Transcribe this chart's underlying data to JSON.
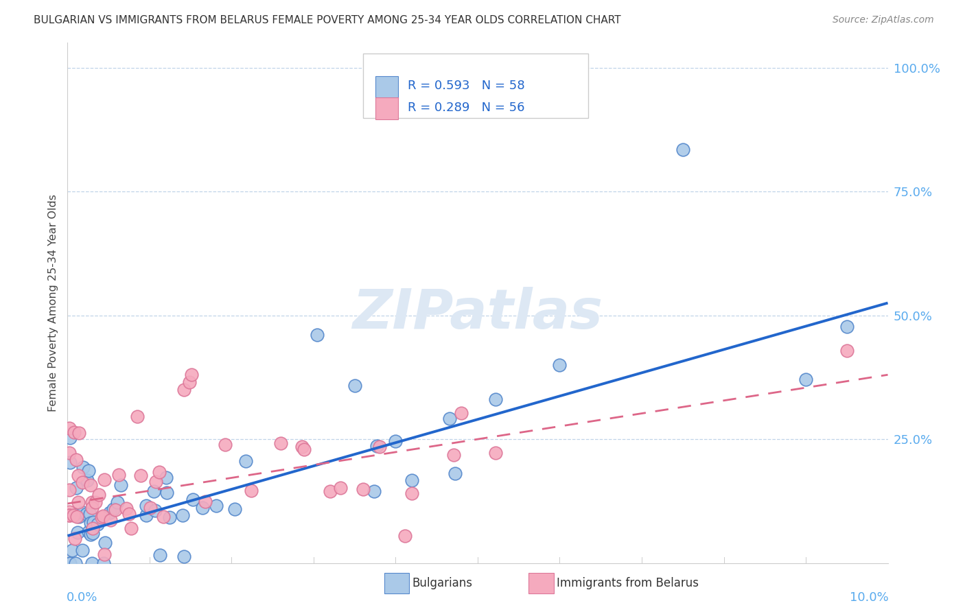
{
  "title": "BULGARIAN VS IMMIGRANTS FROM BELARUS FEMALE POVERTY AMONG 25-34 YEAR OLDS CORRELATION CHART",
  "source": "Source: ZipAtlas.com",
  "ylabel": "Female Poverty Among 25-34 Year Olds",
  "yticks": [
    0.0,
    0.25,
    0.5,
    0.75,
    1.0
  ],
  "ytick_labels": [
    "",
    "25.0%",
    "50.0%",
    "75.0%",
    "100.0%"
  ],
  "legend1_label": "R = 0.593   N = 58",
  "legend2_label": "R = 0.289   N = 56",
  "legend_color1": "#aac9e8",
  "legend_color2": "#f5aabe",
  "line1_color": "#2266cc",
  "line2_color": "#dd6688",
  "scatter1_facecolor": "#aac9e8",
  "scatter1_edgecolor": "#5588cc",
  "scatter2_facecolor": "#f5aabe",
  "scatter2_edgecolor": "#dd7799",
  "footer_label1": "Bulgarians",
  "footer_label2": "Immigrants from Belarus",
  "xmin": 0.0,
  "xmax": 0.1,
  "ymin": 0.0,
  "ymax": 1.05,
  "bulg_line_x0": 0.0,
  "bulg_line_y0": 0.055,
  "bulg_line_x1": 0.1,
  "bulg_line_y1": 0.525,
  "bel_line_x0": 0.0,
  "bel_line_y0": 0.12,
  "bel_line_x1": 0.1,
  "bel_line_y1": 0.38
}
